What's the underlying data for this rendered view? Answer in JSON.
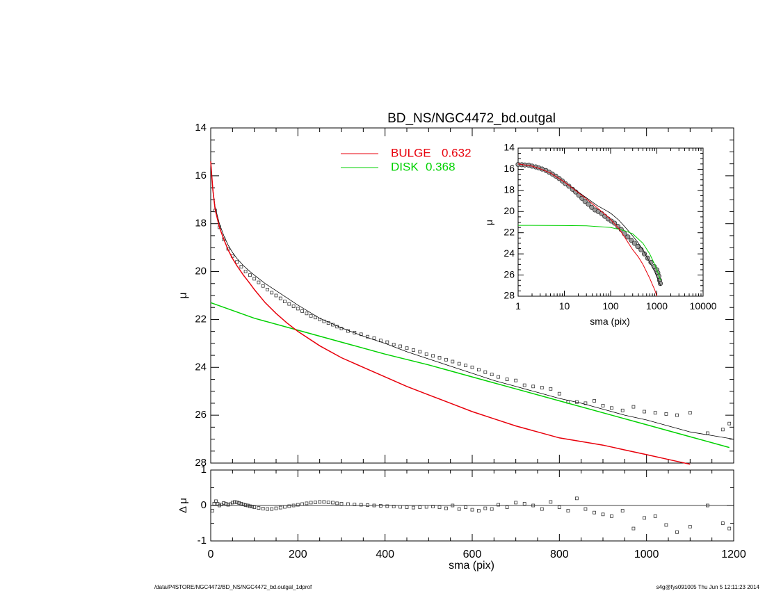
{
  "chart_data": [
    {
      "id": "main",
      "type": "line",
      "title": "BD_NS/NGC4472_bd.outgal",
      "xlabel": "",
      "ylabel": "μ",
      "xlim": [
        0,
        1200
      ],
      "ylim": [
        28,
        14
      ],
      "yticks": [
        "14",
        "16",
        "18",
        "20",
        "22",
        "24",
        "26",
        "28"
      ],
      "legend": [
        {
          "label": "BULGE",
          "value": "0.632",
          "color": "#e8000b"
        },
        {
          "label": "DISK",
          "value": "0.368",
          "color": "#00d100"
        }
      ],
      "series": [
        {
          "name": "BULGE",
          "role": "bulge",
          "color": "#e8000b",
          "x": [
            0,
            5,
            10,
            20,
            30,
            40,
            50,
            60,
            75,
            90,
            100,
            125,
            150,
            175,
            200,
            250,
            300,
            350,
            400,
            450,
            500,
            550,
            600,
            650,
            700,
            750,
            800,
            850,
            900,
            950,
            1000,
            1050,
            1100
          ],
          "y": [
            15.4,
            16.6,
            17.4,
            18.15,
            18.65,
            19.1,
            19.45,
            19.75,
            20.15,
            20.5,
            20.75,
            21.3,
            21.75,
            22.15,
            22.5,
            23.1,
            23.6,
            24.0,
            24.4,
            24.8,
            25.15,
            25.5,
            25.85,
            26.15,
            26.45,
            26.7,
            26.95,
            27.1,
            27.25,
            27.45,
            27.65,
            27.85,
            28.05
          ]
        },
        {
          "name": "DISK",
          "role": "disk",
          "color": "#00d100",
          "x": [
            0,
            100,
            200,
            300,
            400,
            500,
            600,
            700,
            800,
            900,
            1000,
            1100,
            1190
          ],
          "y": [
            21.3,
            21.95,
            22.45,
            22.95,
            23.45,
            23.9,
            24.4,
            24.9,
            25.4,
            25.9,
            26.4,
            26.9,
            27.35
          ]
        },
        {
          "name": "TOTAL",
          "role": "total",
          "color": "#000000",
          "x": [
            0,
            5,
            10,
            20,
            30,
            40,
            50,
            60,
            75,
            90,
            100,
            125,
            150,
            175,
            200,
            250,
            300,
            350,
            400,
            450,
            500,
            550,
            600,
            650,
            700,
            750,
            800,
            850,
            900,
            950,
            1000,
            1050,
            1100,
            1150,
            1200
          ],
          "y": [
            15.4,
            16.55,
            17.3,
            18.0,
            18.5,
            18.9,
            19.2,
            19.45,
            19.75,
            20.0,
            20.15,
            20.5,
            20.8,
            21.1,
            21.4,
            21.95,
            22.35,
            22.7,
            23.0,
            23.35,
            23.65,
            23.95,
            24.25,
            24.55,
            24.8,
            25.05,
            25.3,
            25.5,
            25.75,
            26.0,
            26.2,
            26.45,
            26.7,
            26.85,
            27.0
          ]
        },
        {
          "name": "DATA",
          "role": "data",
          "x": [
            10,
            20,
            30,
            40,
            50,
            60,
            70,
            80,
            90,
            100,
            110,
            120,
            130,
            140,
            150,
            160,
            170,
            180,
            190,
            200,
            210,
            220,
            230,
            240,
            250,
            260,
            270,
            280,
            290,
            300,
            315,
            330,
            345,
            360,
            375,
            390,
            405,
            420,
            435,
            450,
            465,
            480,
            495,
            510,
            525,
            540,
            555,
            570,
            585,
            600,
            615,
            630,
            645,
            660,
            680,
            700,
            720,
            740,
            760,
            780,
            800,
            820,
            840,
            860,
            880,
            900,
            920,
            945,
            970,
            995,
            1020,
            1045,
            1070,
            1100,
            1140,
            1175,
            1190
          ],
          "y": [
            17.45,
            18.15,
            18.65,
            19.05,
            19.35,
            19.6,
            19.8,
            20.0,
            20.15,
            20.3,
            20.45,
            20.6,
            20.75,
            20.88,
            21.0,
            21.12,
            21.25,
            21.35,
            21.45,
            21.55,
            21.65,
            21.75,
            21.85,
            21.92,
            22.0,
            22.08,
            22.15,
            22.22,
            22.3,
            22.38,
            22.48,
            22.55,
            22.62,
            22.72,
            22.78,
            22.88,
            22.95,
            23.05,
            23.12,
            23.2,
            23.28,
            23.35,
            23.45,
            23.52,
            23.6,
            23.68,
            23.76,
            23.85,
            23.92,
            24.0,
            24.1,
            24.2,
            24.3,
            24.4,
            24.5,
            24.55,
            24.75,
            24.8,
            24.85,
            24.9,
            25.1,
            25.45,
            25.45,
            25.5,
            25.4,
            25.6,
            25.7,
            25.8,
            25.65,
            25.85,
            25.9,
            25.95,
            26.0,
            25.9,
            26.75,
            26.6,
            26.35
          ]
        }
      ]
    },
    {
      "id": "inset",
      "type": "line",
      "xscale": "log",
      "xlabel": "sma (pix)",
      "ylabel": "μ",
      "xlim": [
        1,
        10000
      ],
      "ylim": [
        28,
        14
      ],
      "xticks": [
        "1",
        "10",
        "100",
        "1000",
        "10000"
      ],
      "yticks": [
        "14",
        "16",
        "18",
        "20",
        "22",
        "24",
        "26",
        "28"
      ],
      "series": [
        {
          "name": "BULGE",
          "role": "bulge",
          "color": "#e8000b",
          "x": [
            1,
            2,
            3,
            5,
            10,
            20,
            30,
            50,
            80,
            100,
            150,
            200,
            300,
            400,
            500,
            600,
            700,
            800,
            900,
            1000
          ],
          "y": [
            15.5,
            15.7,
            15.95,
            16.35,
            17.2,
            18.2,
            18.8,
            19.6,
            20.35,
            20.75,
            21.6,
            22.4,
            23.6,
            24.3,
            25.0,
            25.7,
            26.3,
            26.9,
            27.4,
            28.0
          ]
        },
        {
          "name": "DISK",
          "role": "disk",
          "color": "#00d100",
          "x": [
            1,
            10,
            30,
            100,
            200,
            300,
            500,
            700,
            900,
            1100,
            1200
          ],
          "y": [
            21.3,
            21.32,
            21.35,
            21.5,
            21.8,
            22.1,
            23.0,
            24.0,
            25.0,
            26.0,
            26.5
          ]
        },
        {
          "name": "TOTAL",
          "role": "total",
          "color": "#000000",
          "x": [
            1,
            2,
            3,
            5,
            10,
            20,
            30,
            50,
            80,
            100,
            150,
            200,
            300,
            400,
            500,
            700,
            900,
            1000,
            1100,
            1200
          ],
          "y": [
            15.5,
            15.7,
            15.95,
            16.35,
            17.2,
            18.15,
            18.7,
            19.4,
            19.9,
            20.15,
            20.8,
            21.4,
            22.3,
            23.0,
            23.6,
            24.8,
            25.7,
            26.2,
            26.6,
            27.0
          ]
        },
        {
          "name": "DATA",
          "role": "data",
          "x": [
            1,
            1.2,
            1.4,
            1.7,
            2,
            2.4,
            2.8,
            3.3,
            4,
            4.7,
            5.5,
            6.5,
            7.7,
            9,
            10.5,
            12.5,
            15,
            17.5,
            20.5,
            24,
            28,
            33,
            39,
            46,
            54,
            64,
            75,
            88,
            104,
            122,
            144,
            170,
            200,
            236,
            278,
            328,
            386,
            455,
            536,
            632,
            745,
            878,
            1000,
            1050,
            1100,
            1150,
            1190
          ],
          "y": [
            15.55,
            15.57,
            15.6,
            15.62,
            15.7,
            15.78,
            15.87,
            15.98,
            16.12,
            16.28,
            16.45,
            16.65,
            16.88,
            17.1,
            17.35,
            17.6,
            17.9,
            18.15,
            18.45,
            18.75,
            19.05,
            19.3,
            19.6,
            19.85,
            20.0,
            20.2,
            20.45,
            20.7,
            20.9,
            21.1,
            21.4,
            21.7,
            22.1,
            22.4,
            22.7,
            23.0,
            23.3,
            23.6,
            24.0,
            24.4,
            24.8,
            25.2,
            25.5,
            25.8,
            26.1,
            26.5,
            26.8
          ]
        }
      ]
    },
    {
      "id": "residual",
      "type": "scatter",
      "xlabel": "sma (pix)",
      "ylabel": "Δ μ",
      "xlim": [
        0,
        1200
      ],
      "ylim": [
        -1,
        1
      ],
      "xticks": [
        "0",
        "200",
        "400",
        "600",
        "800",
        "1000",
        "1200"
      ],
      "yticks": [
        "1",
        "0",
        "-1"
      ],
      "series": [
        {
          "name": "RESIDUALS",
          "role": "residual",
          "x": [
            4,
            8,
            12,
            16,
            20,
            25,
            30,
            35,
            40,
            45,
            50,
            55,
            60,
            65,
            70,
            75,
            80,
            85,
            90,
            95,
            100,
            110,
            120,
            130,
            140,
            150,
            160,
            170,
            180,
            190,
            200,
            210,
            220,
            230,
            240,
            250,
            260,
            270,
            280,
            290,
            300,
            315,
            330,
            345,
            360,
            375,
            390,
            405,
            420,
            435,
            450,
            465,
            480,
            495,
            510,
            525,
            540,
            555,
            570,
            585,
            600,
            615,
            630,
            645,
            660,
            680,
            700,
            720,
            740,
            760,
            780,
            800,
            820,
            840,
            860,
            880,
            900,
            920,
            945,
            970,
            995,
            1020,
            1045,
            1070,
            1100,
            1140,
            1175,
            1190
          ],
          "y": [
            -0.15,
            0.05,
            0.12,
            0.05,
            0.0,
            0.03,
            0.07,
            0.05,
            0.02,
            0.04,
            0.08,
            0.1,
            0.09,
            0.07,
            0.05,
            0.03,
            0.01,
            0.0,
            -0.02,
            -0.03,
            -0.05,
            -0.07,
            -0.09,
            -0.1,
            -0.1,
            -0.08,
            -0.06,
            -0.04,
            -0.02,
            0.0,
            0.02,
            0.04,
            0.06,
            0.08,
            0.09,
            0.1,
            0.1,
            0.09,
            0.08,
            0.06,
            0.05,
            0.04,
            0.03,
            0.02,
            0.01,
            0.0,
            -0.01,
            -0.02,
            -0.03,
            -0.04,
            -0.05,
            -0.06,
            -0.05,
            -0.04,
            -0.03,
            -0.05,
            -0.08,
            0.0,
            -0.1,
            -0.05,
            -0.12,
            -0.15,
            -0.08,
            -0.1,
            0.02,
            -0.05,
            0.08,
            0.05,
            0.0,
            -0.1,
            0.1,
            -0.05,
            -0.15,
            0.2,
            -0.1,
            -0.2,
            -0.25,
            -0.3,
            -0.15,
            -0.65,
            -0.35,
            -0.3,
            -0.55,
            -0.75,
            -0.6,
            0.0,
            -0.5,
            -0.65
          ]
        }
      ]
    }
  ],
  "footer": {
    "left": "/data/P4STORE/NGC4472/BD_NS/NGC4472_bd.outgal_1dprof",
    "right": "s4g@fys091005  Thu Jun  5 12:11:23 2014"
  }
}
